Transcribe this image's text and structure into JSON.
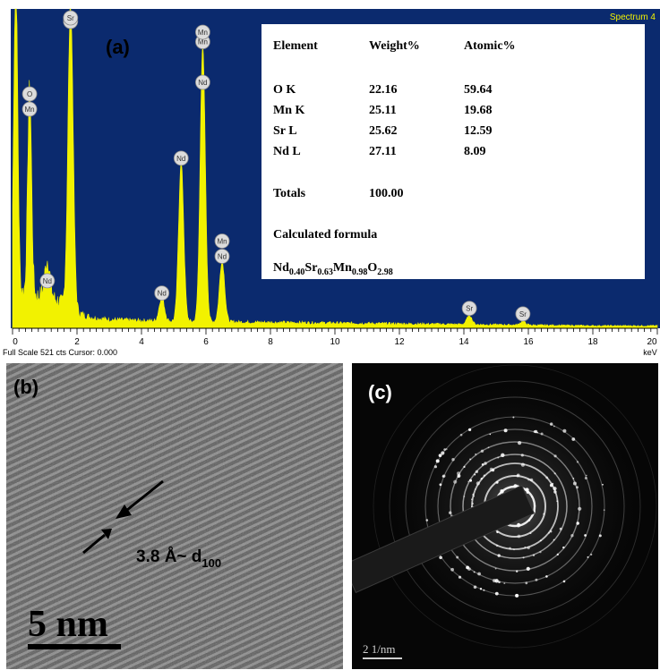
{
  "figure": {
    "panel_a_label": "(a)",
    "panel_b_label": "(b)",
    "panel_c_label": "(c)"
  },
  "eds": {
    "spectrum_title": "Spectrum 4",
    "status_text": "Full Scale 521 cts Cursor: 0.000",
    "x_unit": "keV",
    "colors": {
      "plot_bg": "#0b2a6e",
      "spectrum": "#f2f200",
      "badge": "#dcdcdc"
    },
    "table": {
      "headers": [
        "Element",
        "Weight%",
        "Atomic%"
      ],
      "rows": [
        {
          "element": "O K",
          "weight": "22.16",
          "atomic": "59.64"
        },
        {
          "element": "Mn K",
          "weight": "25.11",
          "atomic": "19.68"
        },
        {
          "element": "Sr L",
          "weight": "25.62",
          "atomic": "12.59"
        },
        {
          "element": "Nd L",
          "weight": "27.11",
          "atomic": "8.09"
        }
      ],
      "totals_label": "Totals",
      "totals_value": "100.00",
      "formula_label": "Calculated formula",
      "formula_parts": [
        {
          "el": "Nd",
          "sub": "0.40"
        },
        {
          "el": "Sr",
          "sub": "0.63"
        },
        {
          "el": "Mn",
          "sub": "0.98"
        },
        {
          "el": "O",
          "sub": "2.98"
        }
      ]
    }
  },
  "chart_data": {
    "type": "line",
    "xlim": [
      0,
      20
    ],
    "x_tick_labels": [
      "0",
      "2",
      "4",
      "6",
      "8",
      "10",
      "12",
      "14",
      "16",
      "18",
      "20"
    ],
    "xlabel": "keV",
    "full_scale_counts": 521,
    "peaks": [
      {
        "x": 0.1,
        "y": 521
      },
      {
        "x": 0.53,
        "y": 340,
        "labels": [
          "O",
          "Mn"
        ]
      },
      {
        "x": 1.08,
        "y": 60,
        "labels": [
          "Nd"
        ]
      },
      {
        "x": 1.8,
        "y": 500,
        "labels": [
          "Sr"
        ]
      },
      {
        "x": 4.63,
        "y": 40,
        "labels": [
          "Nd"
        ]
      },
      {
        "x": 5.23,
        "y": 260,
        "labels": [
          "Nd"
        ]
      },
      {
        "x": 5.9,
        "y": 450,
        "labels": [
          "Mn"
        ]
      },
      {
        "x": 6.5,
        "y": 100,
        "labels": [
          "Mn",
          "Nd"
        ]
      },
      {
        "x": 14.17,
        "y": 15,
        "labels": [
          "Sr"
        ]
      },
      {
        "x": 15.83,
        "y": 6,
        "labels": [
          "Sr"
        ]
      }
    ],
    "peak_badges_at_top": [
      {
        "x": 1.8,
        "labels": [
          "Sr"
        ]
      },
      {
        "x": 5.9,
        "labels": [
          "Mn",
          "Nd"
        ]
      }
    ]
  },
  "hrtem": {
    "d_spacing_label": "3.8 Å~ d",
    "d_spacing_sub": "100",
    "scale_bar_label": "5 nm"
  },
  "saed": {
    "scale_bar_label": "2 1/nm"
  }
}
